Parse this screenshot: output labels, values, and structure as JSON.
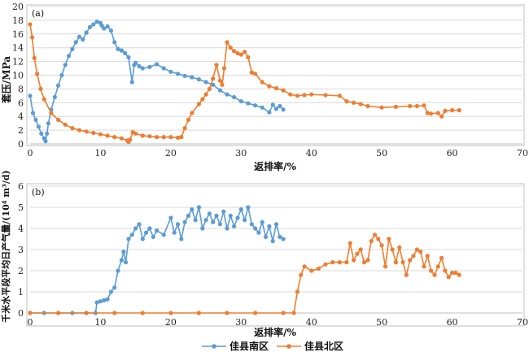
{
  "chart_data": [
    {
      "type": "line",
      "panel_label": "(a)",
      "xlabel": "返排率/%",
      "ylabel": "套压/MPa",
      "xlim": [
        0,
        70
      ],
      "ylim": [
        0,
        20
      ],
      "xticks": [
        0,
        10,
        20,
        30,
        40,
        50,
        60,
        70
      ],
      "yticks": [
        0,
        2,
        4,
        6,
        8,
        10,
        12,
        14,
        16,
        18,
        20
      ],
      "grid": "horizontal",
      "series": [
        {
          "name": "佳县南区",
          "color": "#5B9BD5",
          "x": [
            0,
            0.4,
            0.8,
            1.2,
            1.6,
            2.0,
            2.2,
            2.4,
            2.6,
            3.0,
            3.5,
            4.0,
            4.5,
            5.0,
            5.5,
            6.0,
            6.5,
            7.0,
            7.5,
            8.0,
            8.5,
            9.0,
            9.5,
            10.0,
            10.2,
            10.5,
            11.0,
            11.5,
            12.0,
            12.5,
            13.0,
            13.5,
            14.0,
            14.5,
            14.8,
            15.0,
            15.5,
            16.0,
            17.0,
            18.0,
            19.0,
            20.0,
            21.0,
            22.0,
            23.0,
            24.0,
            25.0,
            26.0,
            27.0,
            28.0,
            29.0,
            30.0,
            31.0,
            32.0,
            33.0,
            34.0,
            34.5,
            35.0,
            35.5,
            36.0
          ],
          "y": [
            7.0,
            4.5,
            3.5,
            2.5,
            1.5,
            0.8,
            0.4,
            1.5,
            3.0,
            5.0,
            6.8,
            8.5,
            10.0,
            11.5,
            12.8,
            13.8,
            14.8,
            15.6,
            15.2,
            16.2,
            17.0,
            17.4,
            17.8,
            17.6,
            17.2,
            16.8,
            17.1,
            16.5,
            14.8,
            13.8,
            13.6,
            13.2,
            12.6,
            9.0,
            11.5,
            11.8,
            11.3,
            11.0,
            11.2,
            11.6,
            11.0,
            10.5,
            10.2,
            9.9,
            9.7,
            9.4,
            9.0,
            8.6,
            7.8,
            7.2,
            6.8,
            6.2,
            5.9,
            5.6,
            5.3,
            4.6,
            5.7,
            5.1,
            5.5,
            5.0
          ]
        },
        {
          "name": "佳县北区",
          "color": "#ED7D31",
          "x": [
            0,
            0.3,
            0.6,
            1.0,
            1.5,
            2.0,
            3.0,
            4.0,
            5.0,
            6.0,
            7.0,
            8.0,
            9.0,
            10.0,
            11.0,
            12.0,
            13.0,
            13.8,
            14.0,
            14.2,
            14.6,
            15.0,
            16.0,
            17.0,
            18.0,
            19.0,
            20.0,
            21.0,
            21.5,
            22.0,
            22.5,
            23.0,
            24.0,
            24.5,
            25.0,
            25.5,
            26.0,
            26.5,
            27.0,
            27.3,
            27.6,
            28.0,
            28.5,
            29.0,
            29.5,
            30.0,
            30.5,
            31.0,
            31.5,
            32.0,
            33.0,
            34.0,
            35.0,
            36.0,
            37.0,
            38.0,
            39.0,
            40.0,
            42.0,
            44.0,
            45.0,
            46.0,
            47.0,
            48.0,
            50.0,
            52.0,
            54.0,
            55.0,
            56.0,
            56.5,
            57.0,
            58.0,
            58.5,
            59.0,
            60.0,
            61.0
          ],
          "y": [
            17.4,
            15.5,
            12.5,
            10.2,
            8.0,
            6.5,
            4.5,
            3.5,
            2.8,
            2.3,
            2.0,
            1.8,
            1.6,
            1.4,
            1.2,
            1.0,
            0.8,
            0.5,
            0.3,
            0.6,
            1.7,
            1.5,
            1.2,
            1.1,
            1.0,
            1.0,
            1.0,
            0.9,
            1.0,
            2.3,
            3.5,
            4.5,
            5.8,
            6.5,
            7.2,
            8.0,
            9.5,
            11.5,
            9.2,
            8.6,
            11.0,
            14.8,
            14.0,
            13.5,
            13.2,
            13.0,
            13.4,
            12.6,
            10.4,
            10.2,
            9.0,
            8.4,
            8.1,
            7.8,
            7.2,
            7.0,
            7.1,
            7.2,
            7.1,
            7.0,
            6.2,
            6.0,
            5.8,
            5.5,
            5.3,
            5.4,
            5.5,
            5.5,
            5.6,
            4.5,
            4.4,
            4.5,
            4.0,
            4.8,
            4.9,
            4.9
          ]
        }
      ]
    },
    {
      "type": "line",
      "panel_label": "(b)",
      "xlabel": "返排率/%",
      "ylabel": "千米水平段平均日产气量/(10⁴ m³/d)",
      "xlim": [
        0,
        70
      ],
      "ylim": [
        0,
        6
      ],
      "xticks": [
        0,
        10,
        20,
        30,
        40,
        50,
        60,
        70
      ],
      "yticks": [
        0,
        1,
        2,
        3,
        4,
        5,
        6
      ],
      "grid": "horizontal",
      "series": [
        {
          "name": "佳县南区",
          "color": "#5B9BD5",
          "x": [
            0,
            2,
            4,
            6,
            8,
            9.3,
            9.5,
            10.0,
            10.5,
            11.0,
            11.5,
            12.0,
            12.5,
            13.0,
            13.3,
            13.6,
            14.0,
            14.5,
            15.0,
            15.5,
            16.0,
            16.5,
            17.0,
            17.5,
            18.0,
            19.0,
            20.0,
            20.5,
            21.0,
            21.5,
            22.0,
            22.5,
            23.0,
            23.5,
            24.0,
            24.5,
            25.0,
            25.5,
            26.0,
            26.5,
            27.0,
            27.5,
            28.0,
            28.5,
            29.0,
            29.5,
            30.0,
            30.5,
            31.0,
            31.5,
            32.0,
            32.5,
            33.0,
            33.5,
            34.0,
            34.5,
            35.0,
            35.5,
            36.0
          ],
          "y": [
            0,
            0,
            0,
            0,
            0,
            0,
            0.5,
            0.55,
            0.6,
            0.65,
            1.0,
            1.2,
            2.0,
            2.5,
            2.9,
            2.4,
            3.5,
            3.7,
            4.0,
            4.2,
            3.5,
            3.8,
            4.0,
            3.6,
            3.9,
            3.7,
            4.5,
            3.8,
            4.2,
            3.5,
            4.3,
            4.6,
            4.9,
            4.4,
            5.0,
            4.0,
            4.4,
            4.7,
            4.3,
            4.6,
            4.2,
            4.8,
            4.0,
            4.6,
            4.1,
            4.5,
            4.9,
            4.4,
            5.0,
            4.2,
            4.0,
            3.8,
            4.3,
            3.6,
            4.1,
            3.4,
            4.2,
            3.6,
            3.5
          ]
        },
        {
          "name": "佳县北区",
          "color": "#ED7D31",
          "x": [
            0,
            4,
            8,
            12,
            16,
            20,
            24,
            28,
            32,
            36,
            37.5,
            38.0,
            38.5,
            39.0,
            40.0,
            41.0,
            42.0,
            43.0,
            44.0,
            45.0,
            45.5,
            46.0,
            46.5,
            47.0,
            47.5,
            48.0,
            48.5,
            49.0,
            49.5,
            50.0,
            50.5,
            51.0,
            51.5,
            52.0,
            52.5,
            53.0,
            53.5,
            54.0,
            54.5,
            55.0,
            55.5,
            56.0,
            56.5,
            57.0,
            57.5,
            58.0,
            58.5,
            59.0,
            59.5,
            60.0,
            60.5,
            61.0
          ],
          "y": [
            0,
            0,
            0,
            0,
            0,
            0,
            0,
            0,
            0,
            0,
            0,
            1.0,
            1.8,
            2.2,
            2.0,
            2.1,
            2.3,
            2.4,
            2.4,
            2.4,
            3.3,
            2.5,
            2.8,
            3.0,
            2.4,
            2.5,
            3.4,
            3.7,
            3.5,
            3.2,
            2.2,
            3.5,
            3.0,
            2.4,
            3.1,
            2.4,
            1.8,
            2.5,
            2.7,
            3.0,
            2.9,
            2.2,
            2.7,
            2.0,
            1.8,
            2.2,
            2.6,
            2.0,
            1.7,
            1.9,
            1.9,
            1.8
          ]
        }
      ]
    }
  ],
  "legend": {
    "items": [
      {
        "label": "佳县南区",
        "color": "#5B9BD5"
      },
      {
        "label": "佳县北区",
        "color": "#ED7D31"
      }
    ]
  }
}
